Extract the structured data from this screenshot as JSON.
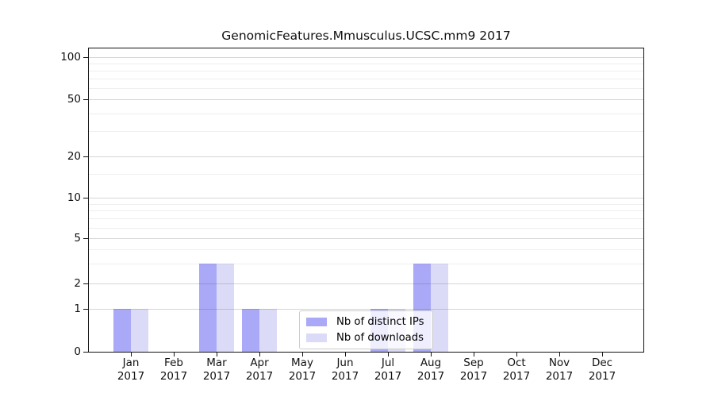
{
  "chart_data": {
    "type": "bar",
    "title": "GenomicFeatures.Mmusculus.UCSC.mm9 2017",
    "categories": [
      "Jan",
      "Feb",
      "Mar",
      "Apr",
      "May",
      "Jun",
      "Jul",
      "Aug",
      "Sep",
      "Oct",
      "Nov",
      "Dec"
    ],
    "category_year": "2017",
    "series": [
      {
        "name": "Nb of distinct IPs",
        "color": "#a9a9f7",
        "values": [
          1,
          0,
          3,
          1,
          0,
          0,
          1,
          3,
          0,
          0,
          0,
          0
        ]
      },
      {
        "name": "Nb of downloads",
        "color": "#dbdbf8",
        "values": [
          1,
          0,
          3,
          1,
          0,
          0,
          1,
          3,
          0,
          0,
          0,
          0
        ]
      }
    ],
    "y_axis": {
      "scale": "log-like",
      "ticks": [
        0,
        1,
        2,
        5,
        10,
        20,
        50,
        100
      ],
      "minor_gridlines": [
        3,
        4,
        6,
        7,
        8,
        9,
        15,
        30,
        40,
        60,
        70,
        80,
        90
      ],
      "range": [
        0,
        110
      ]
    },
    "x_axis": {
      "label_line2": "2017"
    },
    "legend": {
      "position": "inside-lower-center",
      "entries": [
        "Nb of distinct IPs",
        "Nb of downloads"
      ]
    },
    "grid": true,
    "background": "#ffffff",
    "spine_color": "#121212"
  }
}
